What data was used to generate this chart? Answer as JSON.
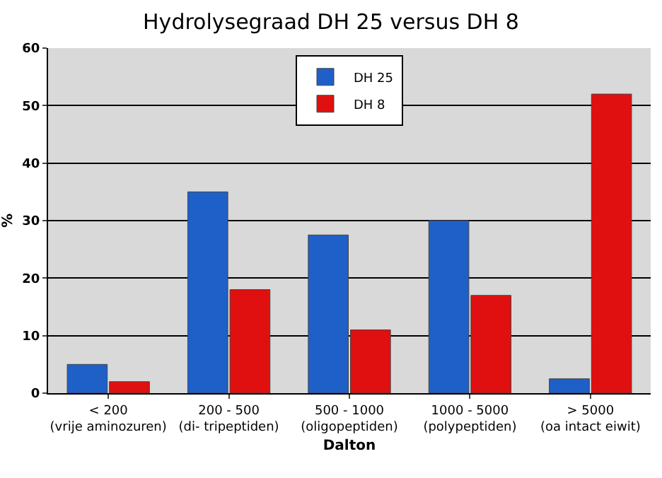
{
  "chart_data": {
    "type": "bar",
    "title": "Hydrolysegraad DH 25 versus DH 8",
    "xlabel": "Dalton",
    "ylabel": "%",
    "categories": [
      "< 200\n(vrije aminozuren)",
      "200 - 500\n(di- tripeptiden)",
      "500 - 1000\n(oligopeptiden)",
      "1000 - 5000\n(polypeptiden)",
      "> 5000\n(oa intact eiwit)"
    ],
    "series": [
      {
        "name": "DH 25",
        "color": "#1f5fc8",
        "values": [
          5,
          35,
          27.5,
          30,
          2.5
        ]
      },
      {
        "name": "DH 8",
        "color": "#e01010",
        "values": [
          2,
          18,
          11,
          17,
          52
        ]
      }
    ],
    "ylim": [
      0,
      60
    ],
    "yticks": [
      0,
      10,
      20,
      30,
      40,
      50,
      60
    ],
    "grid": "y",
    "legend": "top"
  }
}
